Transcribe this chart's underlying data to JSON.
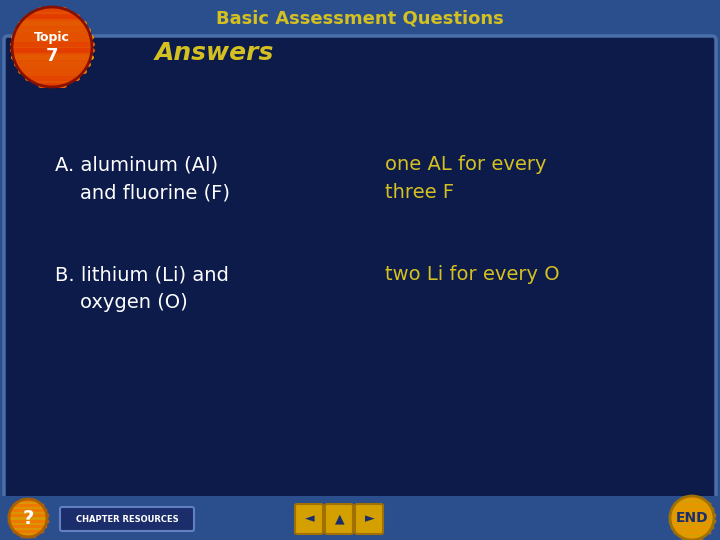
{
  "title": "Basic Assessment Questions",
  "title_color": "#D4C020",
  "title_fontsize": 13,
  "bg_outer": "#2B4F8C",
  "bg_inner": "#0D1B4B",
  "topic_text_line1": "Topic",
  "topic_text_line2": "7",
  "topic_circle_color1": "#FF8C00",
  "topic_circle_color2": "#CC2000",
  "answers_label": "Answers",
  "answers_color": "#D4C020",
  "answers_fontsize": 18,
  "items": [
    {
      "question_line1": "A. aluminum (Al)",
      "question_line2": "    and fluorine (F)",
      "answer_line1": "one AL for every",
      "answer_line2": "three F"
    },
    {
      "question_line1": "B. lithium (Li) and",
      "question_line2": "    oxygen (O)",
      "answer_line1": "two Li for every O",
      "answer_line2": ""
    }
  ],
  "question_color": "#FFFFFF",
  "answer_color": "#D4C020",
  "item_fontsize": 14,
  "footer_text": "CHAPTER RESOURCES",
  "end_label": "END",
  "inner_box_border": "#4A6FA8",
  "footer_btn_color": "#D4A000",
  "footer_btn_border": "#A07000",
  "footer_bg": "#1E3A6E",
  "question_mark_color": "#D4A000"
}
